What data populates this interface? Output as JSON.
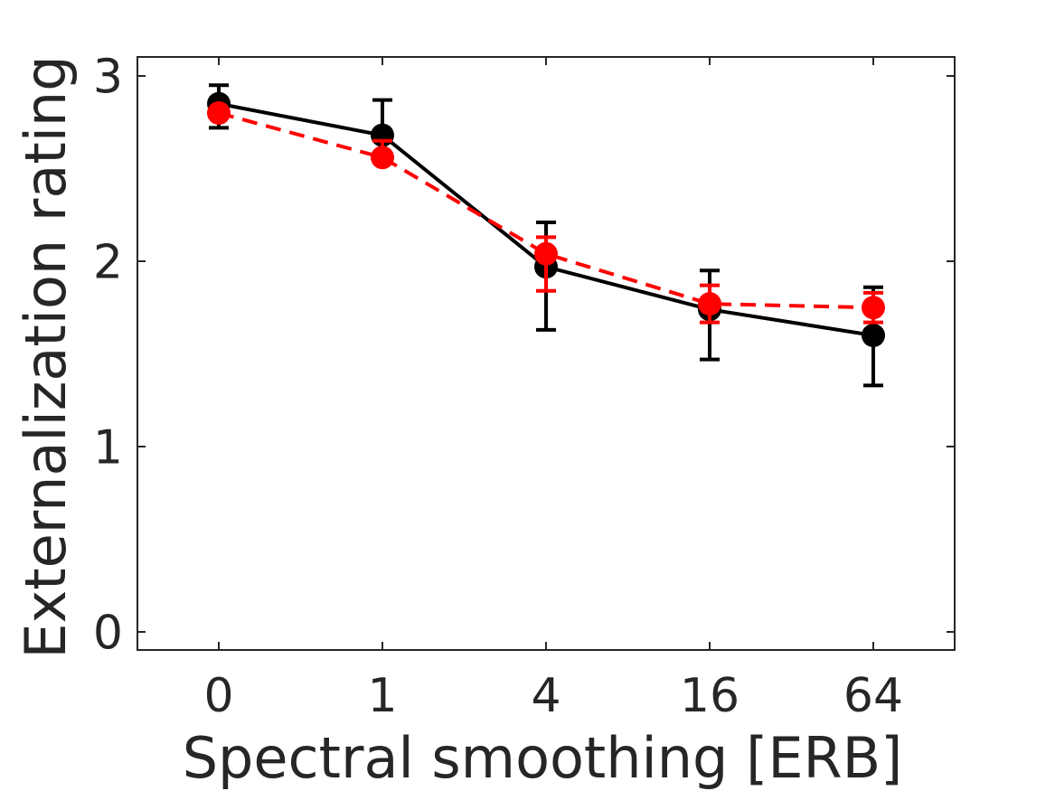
{
  "figure": {
    "background_color": "#ffffff",
    "title": ""
  },
  "chart_data": {
    "type": "line",
    "title": "",
    "xlabel": "Spectral smoothing [ERB]",
    "ylabel": "Externalization rating",
    "categories": [
      "0",
      "1",
      "4",
      "16",
      "64"
    ],
    "x_scale": "categorical (log-spaced ERB values, equally spaced ticks)",
    "yticks": [
      0,
      1,
      2,
      3
    ],
    "ylim": [
      0,
      3.1
    ],
    "grid": false,
    "legend": "none",
    "axis_color": "#262626",
    "text_color": "#262626",
    "series": [
      {
        "name": "black-solid",
        "color": "#000000",
        "line_style": "solid",
        "marker": "filled-circle",
        "values": [
          2.85,
          2.68,
          1.97,
          1.74,
          1.6
        ],
        "err_cap_upper": [
          2.95,
          2.87,
          2.21,
          1.95,
          1.86
        ],
        "err_cap_lower": [
          2.72,
          null,
          1.63,
          1.47,
          1.33
        ]
      },
      {
        "name": "red-dashed",
        "color": "#ff0000",
        "line_style": "dashed",
        "marker": "filled-circle",
        "values": [
          2.8,
          2.56,
          2.04,
          1.77,
          1.75
        ],
        "err_cap_upper": [
          null,
          2.65,
          2.13,
          1.87,
          1.83
        ],
        "err_cap_lower": [
          null,
          null,
          1.84,
          1.67,
          1.67
        ]
      }
    ]
  }
}
